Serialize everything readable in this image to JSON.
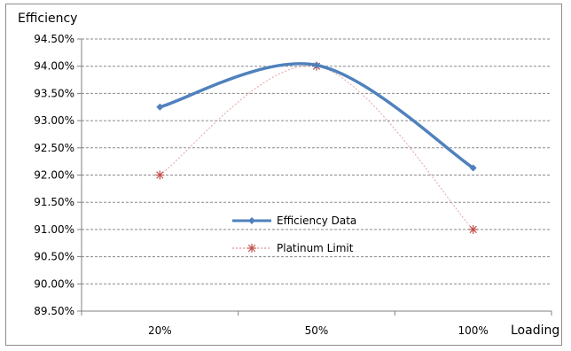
{
  "chart_data": {
    "type": "line",
    "ylabel": "Efficiency",
    "xlabel": "Loading",
    "categories": [
      "20%",
      "50%",
      "100%"
    ],
    "ylim": [
      89.5,
      94.5
    ],
    "y_ticks": [
      "89.50%",
      "90.00%",
      "90.50%",
      "91.00%",
      "91.50%",
      "92.00%",
      "92.50%",
      "93.00%",
      "93.50%",
      "94.00%",
      "94.50%"
    ],
    "grid": "horizontal dashed",
    "legend_placement": "center",
    "series": [
      {
        "name": "Efficiency Data",
        "values": [
          93.25,
          94.02,
          92.13
        ],
        "color": "#4f81bd",
        "marker": "diamond"
      },
      {
        "name": "Platinum Limit",
        "values": [
          92.0,
          94.0,
          91.0
        ],
        "color": "#c0504d",
        "marker": "star"
      }
    ]
  }
}
